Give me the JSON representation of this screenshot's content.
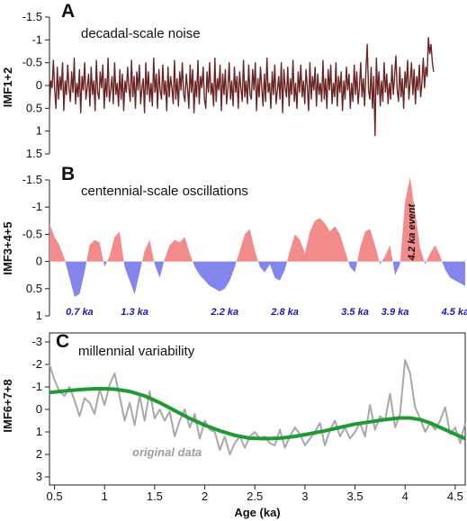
{
  "chart_data": [
    {
      "type": "line",
      "panel_letter": "A",
      "title": "decadal-scale noise",
      "ylabel": "IMF1+2",
      "ylim": [
        1.5,
        -1.5
      ],
      "y_inverted": true,
      "yticks": [
        {
          "v": -1.5,
          "t": "-1.5"
        },
        {
          "v": -1,
          "t": "-1"
        },
        {
          "v": -0.5,
          "t": "-0.5"
        },
        {
          "v": 0,
          "t": "0"
        },
        {
          "v": 0.5,
          "t": "0.5"
        },
        {
          "v": 1,
          "t": "1"
        },
        {
          "v": 1.5,
          "t": "1.5"
        }
      ],
      "color": "#6b2424",
      "series": [
        {
          "x_start": 0.45,
          "x_step": 0.013,
          "values": [
            0.5,
            -0.1,
            0.05,
            -0.55,
            0.1,
            0.5,
            -0.4,
            0.3,
            -0.2,
            0.1,
            -0.5,
            0.55,
            -0.1,
            0.2,
            -0.45,
            0.05,
            0.35,
            -0.3,
            0.15,
            -0.6,
            0.4,
            -0.05,
            0.25,
            -0.35,
            0.6,
            -0.2,
            0.1,
            -0.5,
            0.3,
            0.05,
            -0.25,
            0.45,
            -0.4,
            0.2,
            -0.1,
            0.55,
            -0.55,
            0.15,
            0.3,
            -0.3,
            0.05,
            -0.45,
            0.5,
            -0.15,
            0.25,
            -0.6,
            0.35,
            0.1,
            -0.2,
            0.4,
            -0.5,
            0.2,
            -0.05,
            0.45,
            -0.35,
            0.3,
            -0.25,
            0.55,
            -0.1,
            0.15,
            -0.4,
            0.05,
            0.35,
            -0.55,
            0.25,
            -0.2,
            0.5,
            -0.3,
            0.1,
            -0.45,
            0.4,
            0.05,
            -0.15,
            0.6,
            -0.5,
            0.2,
            -0.3,
            0.35,
            -0.05,
            0.45,
            -0.6,
            0.15,
            -0.25,
            0.5,
            -0.35,
            0.1,
            0.3,
            -0.45,
            0.2,
            -0.1,
            0.55,
            -0.4,
            0.25,
            -0.2,
            0.05,
            0.4,
            -0.55,
            0.3,
            -0.15,
            0.45,
            -0.3,
            0.1,
            -0.5,
            0.2,
            0.35,
            -0.25,
            0.05,
            0.5,
            -0.45,
            0.15,
            -0.35,
            0.6,
            -0.1,
            0.25,
            -0.55,
            0.4,
            -0.2,
            0.05,
            -0.4,
            0.3,
            0.5,
            -0.3,
            0.15,
            -0.5,
            0.2,
            -0.05,
            0.45,
            -0.6,
            0.35,
            -0.15,
            0.1,
            -0.45,
            0.55,
            -0.25,
            0.2,
            -0.35,
            0.4,
            0.05,
            -0.5,
            0.3,
            -0.1,
            0.45,
            -0.4,
            0.15,
            -0.2,
            0.5,
            -0.3,
            0.05,
            0.35,
            -0.55,
            0.25,
            -0.1,
            0.4,
            -0.45,
            0.2,
            0.3,
            -0.35,
            0.1,
            -0.5,
            0.55,
            -0.15,
            0.25,
            -0.4,
            0.05,
            0.45,
            -0.25,
            0.35,
            -0.6,
            0.15,
            -0.05,
            0.5,
            -0.3,
            0.2,
            -0.45,
            0.4,
            0.1,
            -0.2,
            0.3,
            -0.5,
            0.6,
            -0.35,
            0.05,
            0.25,
            -0.4,
            0.45,
            -0.15,
            0.2,
            -0.55,
            0.35,
            -0.05,
            0.5,
            -0.3,
            0.15,
            -0.45,
            0.25,
            -0.1,
            0.4,
            -0.35,
            0.05,
            0.55,
            -0.5,
            0.3,
            -0.2,
            0.1,
            -0.4,
            0.45,
            -0.25,
            0.2,
            -0.05,
            0.35,
            -0.55,
            0.3,
            -0.15,
            0.5,
            -0.35,
            0.1,
            -0.45,
            0.4,
            -0.05,
            0.25,
            -0.5,
            0.45,
            -0.2,
            0.15,
            -0.3,
            0.55,
            -0.1,
            0.3,
            -0.4,
            0.1,
            -0.25,
            0.5,
            -0.05,
            0.35,
            -0.45,
            0.2,
            -0.3,
            0.4,
            0.05,
            -0.5,
            0.25,
            -0.15,
            0.45,
            -0.35,
            -0.9,
            0.1,
            0.3,
            -0.4,
            0.5,
            -0.2,
            1.1,
            -0.6,
            0.2,
            -0.3,
            0.45,
            -0.1,
            0.35,
            -0.5,
            0.15,
            -0.25,
            0.4,
            -0.05,
            0.3,
            -0.45,
            0.2,
            -0.2,
            -0.65,
            0.1,
            0.35,
            -0.4,
            0.25,
            -0.15,
            0.5,
            -0.3,
            0.05,
            -0.55,
            0.3,
            -0.1,
            -0.5,
            0.2,
            -0.35,
            0.4,
            -0.2,
            0.1,
            -0.45,
            0.25,
            -0.05,
            -0.6,
            0.05,
            -0.4,
            -0.2,
            -1.05,
            -0.7,
            -0.9,
            -0.5,
            -0.3
          ]
        }
      ]
    },
    {
      "type": "area",
      "panel_letter": "B",
      "title": "centennial-scale oscillations",
      "ylabel": "IMF3+4+5",
      "ylim": [
        1,
        -1.5
      ],
      "y_inverted": true,
      "yticks": [
        {
          "v": -1.5,
          "t": "-1.5"
        },
        {
          "v": -1,
          "t": "-1"
        },
        {
          "v": -0.5,
          "t": "-0.5"
        },
        {
          "v": 0,
          "t": "0"
        },
        {
          "v": 0.5,
          "t": "0.5"
        },
        {
          "v": 1,
          "t": "1"
        }
      ],
      "pos_color": "#f28c8c",
      "neg_color": "#8585ee",
      "series": [
        {
          "x": [
            0.45,
            0.5,
            0.55,
            0.6,
            0.65,
            0.7,
            0.75,
            0.8,
            0.85,
            0.9,
            0.95,
            1.0,
            1.05,
            1.1,
            1.15,
            1.2,
            1.25,
            1.3,
            1.35,
            1.4,
            1.45,
            1.5,
            1.55,
            1.6,
            1.65,
            1.7,
            1.75,
            1.8,
            1.85,
            1.9,
            1.95,
            2.0,
            2.05,
            2.1,
            2.15,
            2.2,
            2.25,
            2.3,
            2.35,
            2.4,
            2.45,
            2.5,
            2.55,
            2.6,
            2.65,
            2.7,
            2.75,
            2.8,
            2.85,
            2.9,
            2.95,
            3.0,
            3.05,
            3.1,
            3.15,
            3.2,
            3.25,
            3.3,
            3.35,
            3.4,
            3.45,
            3.5,
            3.55,
            3.6,
            3.65,
            3.7,
            3.75,
            3.8,
            3.85,
            3.9,
            3.95,
            4.0,
            4.05,
            4.1,
            4.15,
            4.2,
            4.25,
            4.3,
            4.35,
            4.4,
            4.45,
            4.5,
            4.55,
            4.6
          ],
          "values": [
            -0.7,
            -0.45,
            -0.3,
            -0.05,
            0.3,
            0.65,
            0.6,
            0.2,
            -0.3,
            -0.4,
            -0.35,
            0.1,
            -0.1,
            -0.45,
            -0.55,
            0.1,
            0.35,
            0.6,
            0.2,
            -0.2,
            -0.4,
            0.05,
            0.3,
            -0.05,
            -0.3,
            -0.4,
            -0.35,
            -0.45,
            -0.15,
            0.1,
            0.25,
            0.35,
            0.45,
            0.5,
            0.55,
            0.5,
            0.35,
            0.1,
            -0.2,
            -0.5,
            -0.6,
            -0.2,
            0.1,
            0.2,
            0.05,
            0.3,
            0.35,
            0.15,
            -0.2,
            -0.5,
            -0.4,
            -0.15,
            -0.55,
            -0.75,
            -0.8,
            -0.7,
            -0.55,
            -0.65,
            -0.5,
            -0.2,
            0.1,
            0.2,
            -0.25,
            -0.55,
            -0.6,
            -0.3,
            0.05,
            -0.1,
            -0.3,
            0.25,
            0.05,
            -1.1,
            -1.55,
            -0.9,
            -0.25,
            0.05,
            -0.15,
            -0.3,
            -0.1,
            0.15,
            0.3,
            0.35,
            0.4,
            0.45
          ]
        }
      ],
      "annotations": [
        "0.7 ka",
        "1.3 ka",
        "2.2 ka",
        "2.8 ka",
        "3.5 ka",
        "3.9 ka",
        "4.5 ka"
      ],
      "event_label": "4.2 ka event"
    },
    {
      "type": "line",
      "panel_letter": "C",
      "title": "millennial variability",
      "ylabel": "IMF6+7+8",
      "xlabel": "Age (ka)",
      "ylim": [
        3,
        -3
      ],
      "y_inverted": true,
      "xlim": [
        0.45,
        4.6
      ],
      "yticks": [
        {
          "v": -3,
          "t": "-3"
        },
        {
          "v": -2,
          "t": "-2"
        },
        {
          "v": -1,
          "t": "-1"
        },
        {
          "v": 0,
          "t": "0"
        },
        {
          "v": 1,
          "t": "1"
        },
        {
          "v": 2,
          "t": "2"
        },
        {
          "v": 3,
          "t": "3"
        }
      ],
      "xticks": [
        {
          "v": 0.5,
          "t": "0.5"
        },
        {
          "v": 1,
          "t": "1"
        },
        {
          "v": 1.5,
          "t": "1.5"
        },
        {
          "v": 2,
          "t": "2"
        },
        {
          "v": 2.5,
          "t": "2.5"
        },
        {
          "v": 3,
          "t": "3"
        },
        {
          "v": 3.5,
          "t": "3.5"
        },
        {
          "v": 4,
          "t": "4"
        },
        {
          "v": 4.5,
          "t": "4.5"
        }
      ],
      "original_label": "original data",
      "series": [
        {
          "kind": "original",
          "color": "#a8a8a8",
          "x": [
            0.45,
            0.5,
            0.55,
            0.6,
            0.65,
            0.7,
            0.75,
            0.8,
            0.85,
            0.9,
            0.95,
            1.0,
            1.05,
            1.1,
            1.15,
            1.2,
            1.25,
            1.3,
            1.35,
            1.4,
            1.45,
            1.5,
            1.55,
            1.6,
            1.65,
            1.7,
            1.75,
            1.8,
            1.85,
            1.9,
            1.95,
            2.0,
            2.05,
            2.1,
            2.15,
            2.2,
            2.25,
            2.3,
            2.35,
            2.4,
            2.45,
            2.5,
            2.55,
            2.6,
            2.65,
            2.7,
            2.75,
            2.8,
            2.85,
            2.9,
            2.95,
            3.0,
            3.05,
            3.1,
            3.15,
            3.2,
            3.25,
            3.3,
            3.35,
            3.4,
            3.45,
            3.5,
            3.55,
            3.6,
            3.65,
            3.7,
            3.75,
            3.8,
            3.85,
            3.9,
            3.95,
            4.0,
            4.05,
            4.1,
            4.15,
            4.2,
            4.25,
            4.3,
            4.35,
            4.4,
            4.45,
            4.5,
            4.55,
            4.6
          ],
          "values": [
            -2.0,
            -1.3,
            -0.8,
            -0.6,
            -1.0,
            -0.4,
            0.3,
            -0.5,
            -0.3,
            0.2,
            -0.9,
            -0.2,
            -1.1,
            -1.6,
            -0.6,
            0.5,
            -0.3,
            0.7,
            -0.6,
            0.5,
            -0.8,
            0.4,
            0.0,
            0.5,
            0.1,
            1.2,
            0.5,
            0.0,
            0.8,
            0.2,
            1.3,
            0.5,
            0.9,
            1.0,
            1.8,
            1.2,
            2.0,
            1.5,
            1.2,
            1.7,
            1.2,
            1.0,
            1.3,
            1.2,
            1.5,
            1.6,
            0.9,
            1.7,
            1.2,
            0.8,
            1.1,
            1.6,
            1.3,
            1.0,
            0.6,
            1.6,
            0.9,
            0.5,
            1.2,
            0.8,
            1.3,
            1.0,
            0.6,
            1.2,
            -0.2,
            0.9,
            0.3,
            0.5,
            -0.7,
            0.8,
            0.2,
            -2.2,
            -1.6,
            -0.1,
            0.4,
            1.0,
            0.6,
            0.9,
            0.5,
            -0.1,
            1.1,
            0.8,
            1.5,
            0.6
          ]
        },
        {
          "kind": "smooth",
          "color": "#1f9a35",
          "x": [
            0.45,
            0.6,
            0.75,
            0.9,
            1.0,
            1.1,
            1.25,
            1.4,
            1.55,
            1.7,
            1.85,
            2.0,
            2.15,
            2.3,
            2.45,
            2.6,
            2.75,
            2.9,
            3.05,
            3.2,
            3.35,
            3.5,
            3.65,
            3.8,
            3.95,
            4.05,
            4.15,
            4.25,
            4.35,
            4.45,
            4.6
          ],
          "values": [
            -0.75,
            -0.82,
            -0.88,
            -0.92,
            -0.92,
            -0.9,
            -0.8,
            -0.6,
            -0.3,
            0.05,
            0.4,
            0.7,
            0.95,
            1.15,
            1.28,
            1.3,
            1.28,
            1.2,
            1.08,
            0.95,
            0.8,
            0.65,
            0.55,
            0.45,
            0.38,
            0.38,
            0.45,
            0.6,
            0.8,
            1.0,
            1.3
          ]
        }
      ]
    }
  ]
}
